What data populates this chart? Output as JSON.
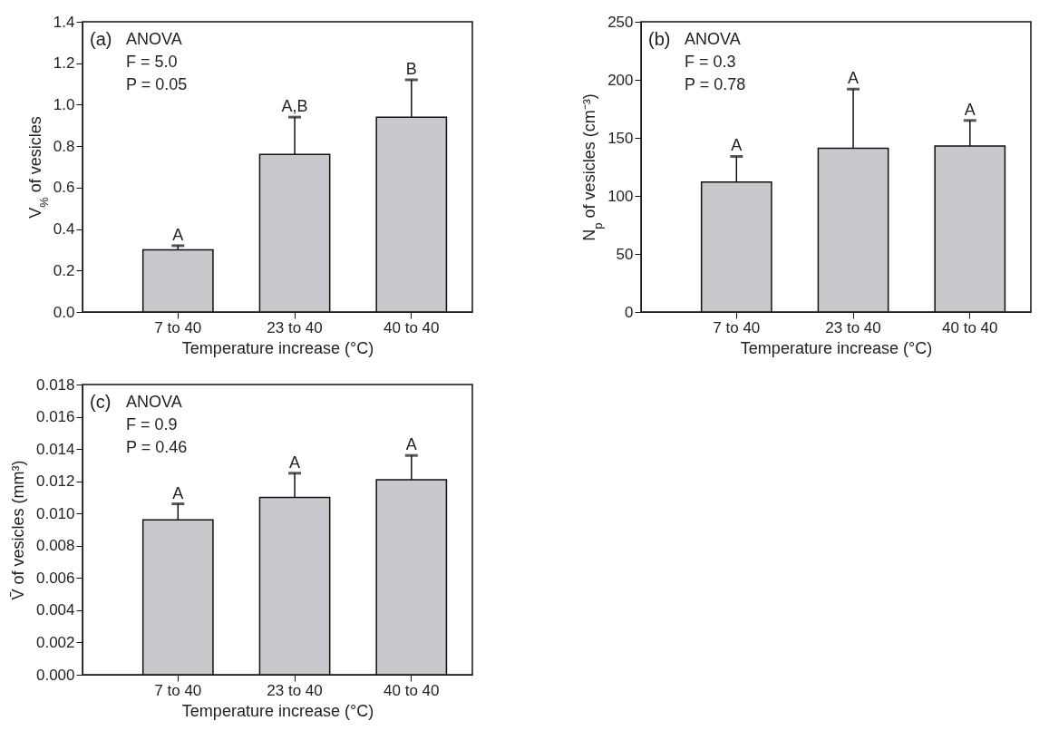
{
  "chart_data": [
    {
      "type": "bar",
      "categories": [
        "7 to 40",
        "23 to 40",
        "40 to 40"
      ],
      "values": [
        0.3,
        0.76,
        0.94
      ],
      "color": "#c8c9cc",
      "errors": [
        [
          0.3,
          0.32
        ],
        [
          0.76,
          0.94
        ],
        [
          0.94,
          1.12
        ]
      ],
      "xlabel": "Temperature increase (°C)",
      "ylabel": "V$_{%}$ of vesicles",
      "ylim": [
        0,
        1.4
      ],
      "yticks": [
        {
          "value": 0,
          "label": "0.0"
        },
        0.2,
        0.4,
        0.6,
        0.8,
        {
          "value": 1,
          "label": "1.0"
        },
        1.2,
        1.4
      ],
      "grid": false,
      "annotations": [
        "(a)",
        "ANOVA",
        "F = 5.0",
        "P = 0.05",
        {
          "text": "A",
          "x": "7 to 40",
          "y": 0.32
        },
        {
          "text": "A,B",
          "x": "23 to 40",
          "y": 0.94
        },
        {
          "text": "B",
          "x": "40 to 40",
          "y": 1.12
        }
      ]
    },
    {
      "type": "bar",
      "categories": [
        "7 to 40",
        "23 to 40",
        "40 to 40"
      ],
      "values": [
        112,
        141,
        143
      ],
      "color": "#c8c9cc",
      "errors": [
        [
          112,
          134
        ],
        [
          141,
          192
        ],
        [
          143,
          165
        ]
      ],
      "xlabel": "Temperature increase (°C)",
      "ylabel": "N$_{p}$ of vesicles (cm⁻³)",
      "ylim": [
        0,
        250
      ],
      "yticks": [
        0,
        50,
        100,
        150,
        200,
        250
      ],
      "grid": false,
      "annotations": [
        "(b)",
        "ANOVA",
        "F = 0.3",
        "P = 0.78",
        {
          "text": "A",
          "x": "7 to 40",
          "y": 134
        },
        {
          "text": "A",
          "x": "23 to 40",
          "y": 192
        },
        {
          "text": "A",
          "x": "40 to 40",
          "y": 165
        }
      ]
    },
    {
      "type": "bar",
      "categories": [
        "7 to 40",
        "23 to 40",
        "40 to 40"
      ],
      "values": [
        0.0096,
        0.011,
        0.0121
      ],
      "color": "#c8c9cc",
      "errors": [
        [
          0.0096,
          0.0106
        ],
        [
          0.011,
          0.0125
        ],
        [
          0.0121,
          0.0136
        ]
      ],
      "xlabel": "Temperature increase (°C)",
      "ylabel": "V̄ of vesicles (mm³)",
      "ylim": [
        0,
        0.018
      ],
      "yticks": [
        {
          "value": 0,
          "label": "0.000"
        },
        {
          "value": 0.002,
          "label": "0.002"
        },
        {
          "value": 0.004,
          "label": "0.004"
        },
        {
          "value": 0.006,
          "label": "0.006"
        },
        {
          "value": 0.008,
          "label": "0.008"
        },
        {
          "value": 0.01,
          "label": "0.010"
        },
        {
          "value": 0.012,
          "label": "0.012"
        },
        {
          "value": 0.014,
          "label": "0.014"
        },
        {
          "value": 0.016,
          "label": "0.016"
        },
        {
          "value": 0.018,
          "label": "0.018"
        }
      ],
      "grid": false,
      "annotations": [
        "(c)",
        "ANOVA",
        "F = 0.9",
        "P = 0.46",
        {
          "text": "A",
          "x": "7 to 40",
          "y": 0.0106
        },
        {
          "text": "A",
          "x": "23 to 40",
          "y": 0.0125
        },
        {
          "text": "A",
          "x": "40 to 40",
          "y": 0.0136
        }
      ]
    }
  ]
}
